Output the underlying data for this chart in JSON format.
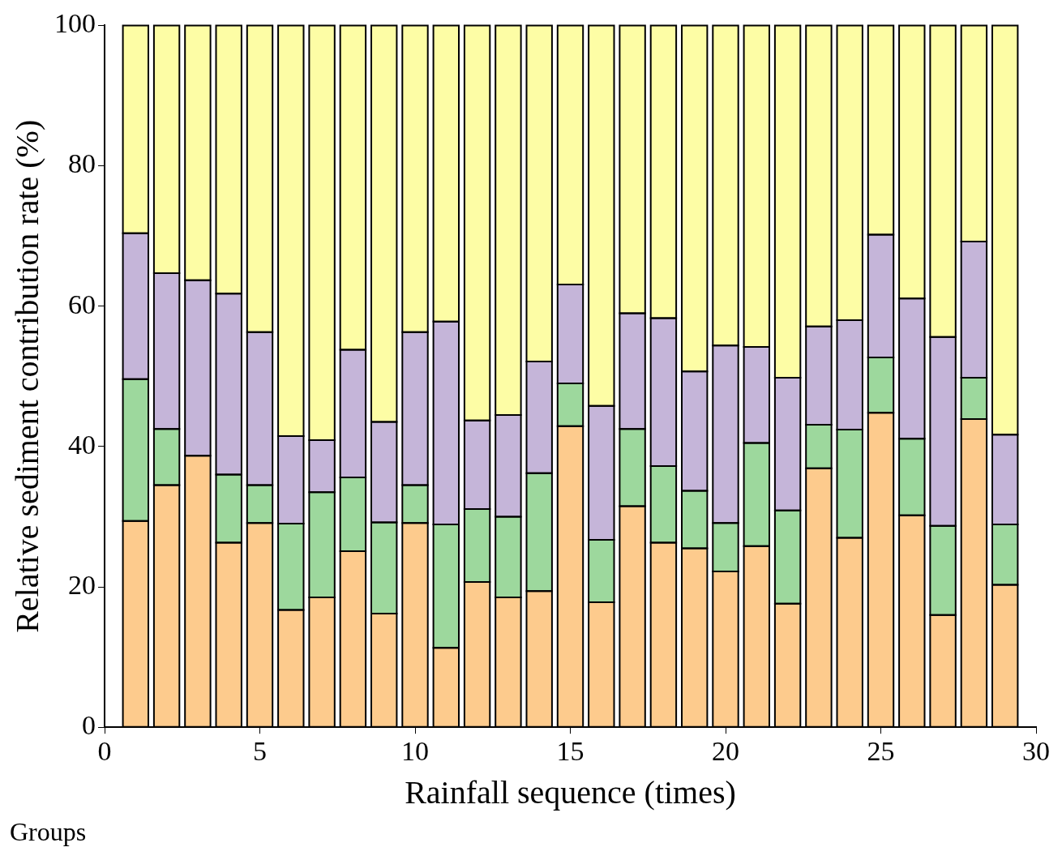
{
  "chart_data": {
    "type": "bar",
    "stacked": true,
    "xlabel": "Rainfall sequence (times)",
    "ylabel": "Relative sediment contribution rate (%)",
    "annotations": [
      "Groups"
    ],
    "x": [
      1,
      2,
      3,
      4,
      5,
      6,
      7,
      8,
      9,
      10,
      11,
      12,
      13,
      14,
      15,
      16,
      17,
      18,
      19,
      20,
      21,
      22,
      23,
      24,
      25,
      26,
      27,
      28,
      29
    ],
    "series": [
      {
        "color": "#fdcb8d",
        "values": [
          29.4,
          34.5,
          38.7,
          26.3,
          29.1,
          16.7,
          18.5,
          25.1,
          16.2,
          29.1,
          11.3,
          20.7,
          18.5,
          19.4,
          42.9,
          17.8,
          31.5,
          26.3,
          25.5,
          22.2,
          25.8,
          17.6,
          36.9,
          27.0,
          44.8,
          30.2,
          16.0,
          43.9,
          20.3
        ]
      },
      {
        "color": "#9dd89d",
        "values": [
          20.2,
          8.0,
          0,
          9.7,
          5.4,
          12.3,
          15.0,
          10.5,
          13.0,
          5.4,
          17.6,
          10.4,
          11.5,
          16.8,
          6.1,
          8.9,
          11.0,
          10.9,
          8.2,
          6.9,
          14.7,
          13.3,
          6.2,
          15.4,
          7.9,
          10.9,
          12.7,
          5.9,
          8.6
        ]
      },
      {
        "color": "#c5b5d9",
        "values": [
          20.8,
          22.2,
          25.0,
          25.8,
          21.8,
          12.5,
          7.4,
          18.2,
          14.3,
          21.8,
          28.9,
          12.6,
          14.5,
          15.9,
          14.1,
          19.1,
          16.5,
          21.1,
          17.0,
          25.3,
          13.7,
          18.9,
          14.0,
          15.6,
          17.5,
          20.0,
          26.9,
          19.4,
          12.8
        ]
      },
      {
        "color": "#fdfda5",
        "values": [
          29.6,
          35.3,
          36.3,
          38.2,
          43.7,
          58.5,
          59.1,
          46.2,
          56.5,
          43.7,
          42.2,
          56.3,
          55.5,
          47.9,
          36.9,
          54.2,
          41.0,
          41.7,
          49.3,
          45.6,
          45.8,
          50.2,
          42.9,
          42.0,
          29.8,
          38.9,
          44.4,
          30.8,
          58.3
        ]
      }
    ],
    "xlim": [
      0,
      30
    ],
    "xticks": [
      0,
      5,
      10,
      15,
      20,
      25,
      30
    ],
    "ylim": [
      0,
      100
    ],
    "yticks": [
      0,
      20,
      40,
      60,
      80,
      100
    ],
    "grid": false,
    "legend": false
  }
}
